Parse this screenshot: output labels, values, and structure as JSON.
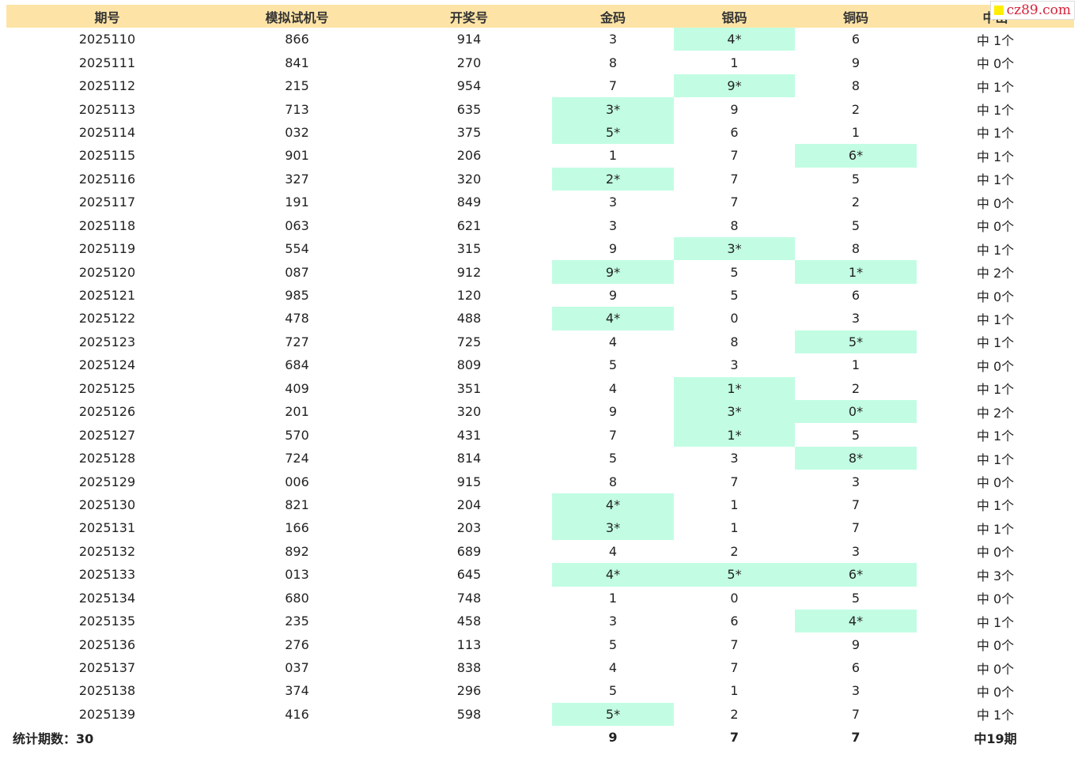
{
  "headers": [
    "期号",
    "模拟试机号",
    "开奖号",
    "金码",
    "银码",
    "铜码",
    "中出"
  ],
  "rows": [
    {
      "issue": "2025110",
      "sim": "866",
      "draw": "914",
      "gold": "3",
      "silver": "4*",
      "bronze": "6",
      "hit": "中 1个"
    },
    {
      "issue": "2025111",
      "sim": "841",
      "draw": "270",
      "gold": "8",
      "silver": "1",
      "bronze": "9",
      "hit": "中 0个"
    },
    {
      "issue": "2025112",
      "sim": "215",
      "draw": "954",
      "gold": "7",
      "silver": "9*",
      "bronze": "8",
      "hit": "中 1个"
    },
    {
      "issue": "2025113",
      "sim": "713",
      "draw": "635",
      "gold": "3*",
      "silver": "9",
      "bronze": "2",
      "hit": "中 1个"
    },
    {
      "issue": "2025114",
      "sim": "032",
      "draw": "375",
      "gold": "5*",
      "silver": "6",
      "bronze": "1",
      "hit": "中 1个"
    },
    {
      "issue": "2025115",
      "sim": "901",
      "draw": "206",
      "gold": "1",
      "silver": "7",
      "bronze": "6*",
      "hit": "中 1个"
    },
    {
      "issue": "2025116",
      "sim": "327",
      "draw": "320",
      "gold": "2*",
      "silver": "7",
      "bronze": "5",
      "hit": "中 1个"
    },
    {
      "issue": "2025117",
      "sim": "191",
      "draw": "849",
      "gold": "3",
      "silver": "7",
      "bronze": "2",
      "hit": "中 0个"
    },
    {
      "issue": "2025118",
      "sim": "063",
      "draw": "621",
      "gold": "3",
      "silver": "8",
      "bronze": "5",
      "hit": "中 0个"
    },
    {
      "issue": "2025119",
      "sim": "554",
      "draw": "315",
      "gold": "9",
      "silver": "3*",
      "bronze": "8",
      "hit": "中 1个"
    },
    {
      "issue": "2025120",
      "sim": "087",
      "draw": "912",
      "gold": "9*",
      "silver": "5",
      "bronze": "1*",
      "hit": "中 2个"
    },
    {
      "issue": "2025121",
      "sim": "985",
      "draw": "120",
      "gold": "9",
      "silver": "5",
      "bronze": "6",
      "hit": "中 0个"
    },
    {
      "issue": "2025122",
      "sim": "478",
      "draw": "488",
      "gold": "4*",
      "silver": "0",
      "bronze": "3",
      "hit": "中 1个"
    },
    {
      "issue": "2025123",
      "sim": "727",
      "draw": "725",
      "gold": "4",
      "silver": "8",
      "bronze": "5*",
      "hit": "中 1个"
    },
    {
      "issue": "2025124",
      "sim": "684",
      "draw": "809",
      "gold": "5",
      "silver": "3",
      "bronze": "1",
      "hit": "中 0个"
    },
    {
      "issue": "2025125",
      "sim": "409",
      "draw": "351",
      "gold": "4",
      "silver": "1*",
      "bronze": "2",
      "hit": "中 1个"
    },
    {
      "issue": "2025126",
      "sim": "201",
      "draw": "320",
      "gold": "9",
      "silver": "3*",
      "bronze": "0*",
      "hit": "中 2个"
    },
    {
      "issue": "2025127",
      "sim": "570",
      "draw": "431",
      "gold": "7",
      "silver": "1*",
      "bronze": "5",
      "hit": "中 1个"
    },
    {
      "issue": "2025128",
      "sim": "724",
      "draw": "814",
      "gold": "5",
      "silver": "3",
      "bronze": "8*",
      "hit": "中 1个"
    },
    {
      "issue": "2025129",
      "sim": "006",
      "draw": "915",
      "gold": "8",
      "silver": "7",
      "bronze": "3",
      "hit": "中 0个"
    },
    {
      "issue": "2025130",
      "sim": "821",
      "draw": "204",
      "gold": "4*",
      "silver": "1",
      "bronze": "7",
      "hit": "中 1个"
    },
    {
      "issue": "2025131",
      "sim": "166",
      "draw": "203",
      "gold": "3*",
      "silver": "1",
      "bronze": "7",
      "hit": "中 1个"
    },
    {
      "issue": "2025132",
      "sim": "892",
      "draw": "689",
      "gold": "4",
      "silver": "2",
      "bronze": "3",
      "hit": "中 0个"
    },
    {
      "issue": "2025133",
      "sim": "013",
      "draw": "645",
      "gold": "4*",
      "silver": "5*",
      "bronze": "6*",
      "hit": "中 3个"
    },
    {
      "issue": "2025134",
      "sim": "680",
      "draw": "748",
      "gold": "1",
      "silver": "0",
      "bronze": "5",
      "hit": "中 0个"
    },
    {
      "issue": "2025135",
      "sim": "235",
      "draw": "458",
      "gold": "3",
      "silver": "6",
      "bronze": "4*",
      "hit": "中 1个"
    },
    {
      "issue": "2025136",
      "sim": "276",
      "draw": "113",
      "gold": "5",
      "silver": "7",
      "bronze": "9",
      "hit": "中 0个"
    },
    {
      "issue": "2025137",
      "sim": "037",
      "draw": "838",
      "gold": "4",
      "silver": "7",
      "bronze": "6",
      "hit": "中 0个"
    },
    {
      "issue": "2025138",
      "sim": "374",
      "draw": "296",
      "gold": "5",
      "silver": "1",
      "bronze": "3",
      "hit": "中 0个"
    },
    {
      "issue": "2025139",
      "sim": "416",
      "draw": "598",
      "gold": "5*",
      "silver": "2",
      "bronze": "7",
      "hit": "中 1个"
    }
  ],
  "footer": {
    "label": "统计期数：30",
    "gold": "9",
    "silver": "7",
    "bronze": "7",
    "hit": "中19期"
  },
  "watermark": {
    "text": "cz89.com"
  },
  "colors": {
    "header_bg": "#fde4a6",
    "hit_bg": "#c2fde3",
    "watermark": "#d6223a"
  }
}
